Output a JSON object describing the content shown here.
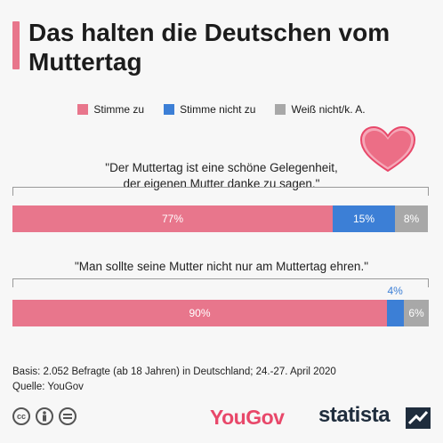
{
  "header": {
    "title": "Das halten die Deutschen vom Muttertag"
  },
  "legend": [
    {
      "label": "Stimme zu",
      "color": "#e8768c"
    },
    {
      "label": "Stimme nicht zu",
      "color": "#3c7fd6"
    },
    {
      "label": "Weiß nicht/k. A.",
      "color": "#a8a8a8"
    }
  ],
  "chart_data": {
    "type": "bar",
    "orientation": "horizontal-stacked-100",
    "categories": [
      "\"Der Muttertag ist eine schöne Gelegenheit, der eigenen Mutter danke zu sagen.\"",
      "\"Man sollte seine Mutter nicht nur am Muttertag ehren.\""
    ],
    "series": [
      {
        "name": "Stimme zu",
        "values": [
          77,
          90
        ],
        "color": "#e8768c"
      },
      {
        "name": "Stimme nicht zu",
        "values": [
          15,
          4
        ],
        "color": "#3c7fd6"
      },
      {
        "name": "Weiß nicht/k. A.",
        "values": [
          8,
          6
        ],
        "color": "#a8a8a8"
      }
    ],
    "labels": [
      [
        "77%",
        "15%",
        "8%"
      ],
      [
        "90%",
        "4%",
        "6%"
      ]
    ],
    "unit": "%"
  },
  "questions": [
    {
      "line1": "\"Der Muttertag ist eine schöne Gelegenheit,",
      "line2": "der eigenen Mutter danke zu sagen.\""
    },
    {
      "line1": "\"Man sollte seine Mutter nicht nur am Muttertag ehren.\"",
      "line2": ""
    }
  ],
  "footer": {
    "basis": "Basis: 2.052 Befragte (ab 18 Jahren) in Deutschland; 24.-27. April 2020",
    "source": "Quelle: YouGov",
    "cc_icons": [
      "cc",
      "by",
      "nd"
    ],
    "brand_yougov": "YouGov",
    "brand_statista": "statista"
  }
}
